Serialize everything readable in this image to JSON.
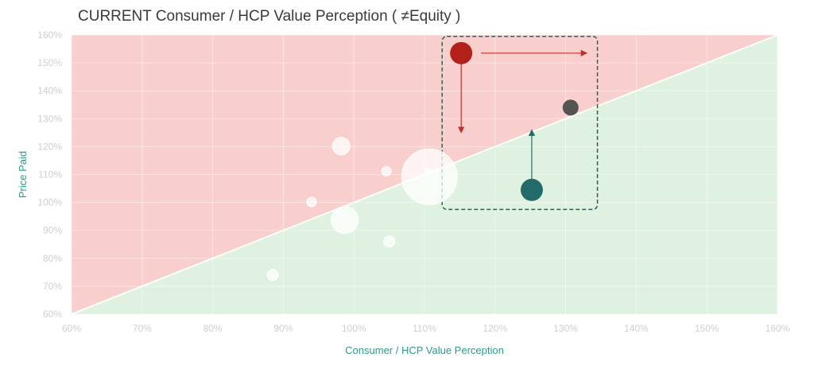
{
  "title": "CURRENT Consumer / HCP Value Perception ( ≠Equity )",
  "chart_data": {
    "type": "scatter",
    "title": "CURRENT Consumer / HCP Value Perception ( ≠Equity )",
    "xlabel": "Consumer / HCP Value Perception",
    "ylabel": "Price Paid",
    "xlim": [
      60,
      160
    ],
    "ylim": [
      60,
      160
    ],
    "x_ticks": [
      "60%",
      "70%",
      "80%",
      "90%",
      "100%",
      "110%",
      "120%",
      "130%",
      "140%",
      "150%",
      "160%"
    ],
    "y_ticks": [
      "60%",
      "70%",
      "80%",
      "90%",
      "100%",
      "110%",
      "120%",
      "130%",
      "140%",
      "150%",
      "160%"
    ],
    "regions": {
      "above_diagonal_color": "#f9cfcd",
      "below_diagonal_color": "#dff1e0",
      "diagonal_color": "#ffffff"
    },
    "points": [
      {
        "x": 88.5,
        "y": 74,
        "size": 7,
        "color": "#ffffff"
      },
      {
        "x": 94,
        "y": 100.2,
        "size": 6,
        "color": "#ffffff"
      },
      {
        "x": 98.2,
        "y": 120.2,
        "size": 11,
        "color": "#ffffff"
      },
      {
        "x": 98.7,
        "y": 93.7,
        "size": 17,
        "color": "#ffffff"
      },
      {
        "x": 104.6,
        "y": 111.2,
        "size": 6,
        "color": "#ffffff"
      },
      {
        "x": 105,
        "y": 86,
        "size": 7,
        "color": "#ffffff"
      },
      {
        "x": 110.7,
        "y": 109.2,
        "size": 35,
        "color": "#ffffff"
      },
      {
        "x": 110.5,
        "y": 111,
        "size": 4,
        "color": "#ffffff"
      },
      {
        "x": 115.2,
        "y": 153.5,
        "size": 14,
        "color": "#b3201a"
      },
      {
        "x": 130.7,
        "y": 134,
        "size": 10,
        "color": "#545454"
      },
      {
        "x": 125.2,
        "y": 104.5,
        "size": 14,
        "color": "#226b68"
      }
    ],
    "highlight_box": {
      "x0": 112.5,
      "x1": 134.5,
      "y0": 97.5,
      "y1": 159.5,
      "color": "#2e5f5d"
    },
    "arrows": [
      {
        "from": [
          118,
          153.5
        ],
        "to": [
          133,
          153.5
        ],
        "color": "#c0302a"
      },
      {
        "from": [
          115.2,
          150
        ],
        "to": [
          115.2,
          125
        ],
        "color": "#c0302a"
      },
      {
        "from": [
          125.2,
          108
        ],
        "to": [
          125.2,
          126
        ],
        "color": "#226b68"
      }
    ]
  }
}
